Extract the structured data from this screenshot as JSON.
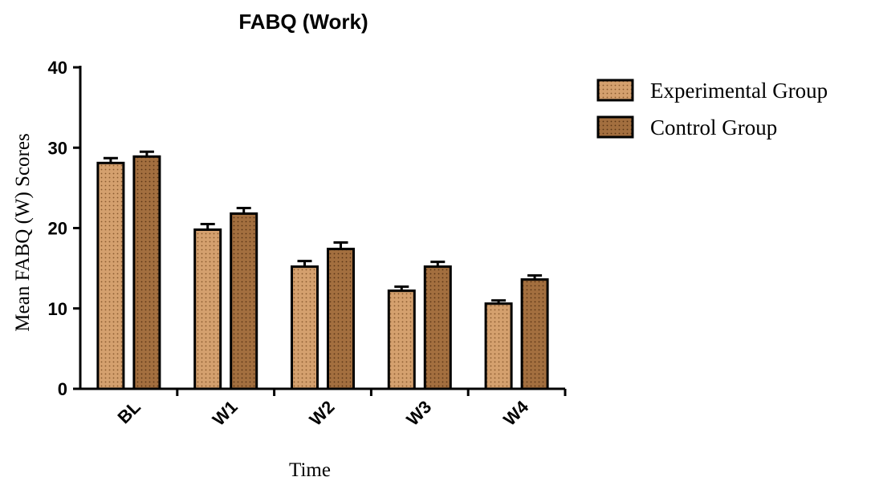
{
  "chart_data": {
    "type": "bar",
    "title": "FABQ (Work)",
    "xlabel": "Time",
    "ylabel": "Mean FABQ (W) Scores",
    "categories": [
      "BL",
      "W1",
      "W2",
      "W3",
      "W4"
    ],
    "series": [
      {
        "name": "Experimental Group",
        "values": [
          28.1,
          19.8,
          15.2,
          12.2,
          10.6
        ],
        "errors": [
          0.6,
          0.7,
          0.7,
          0.5,
          0.4
        ],
        "color": "#d4a06e"
      },
      {
        "name": "Control Group",
        "values": [
          28.9,
          21.8,
          17.4,
          15.2,
          13.6
        ],
        "errors": [
          0.6,
          0.7,
          0.8,
          0.6,
          0.5
        ],
        "color": "#a36f3f"
      }
    ],
    "ylim": [
      0,
      40
    ],
    "yticks": [
      0,
      10,
      20,
      30,
      40
    ],
    "legend": "right",
    "grid": false
  }
}
